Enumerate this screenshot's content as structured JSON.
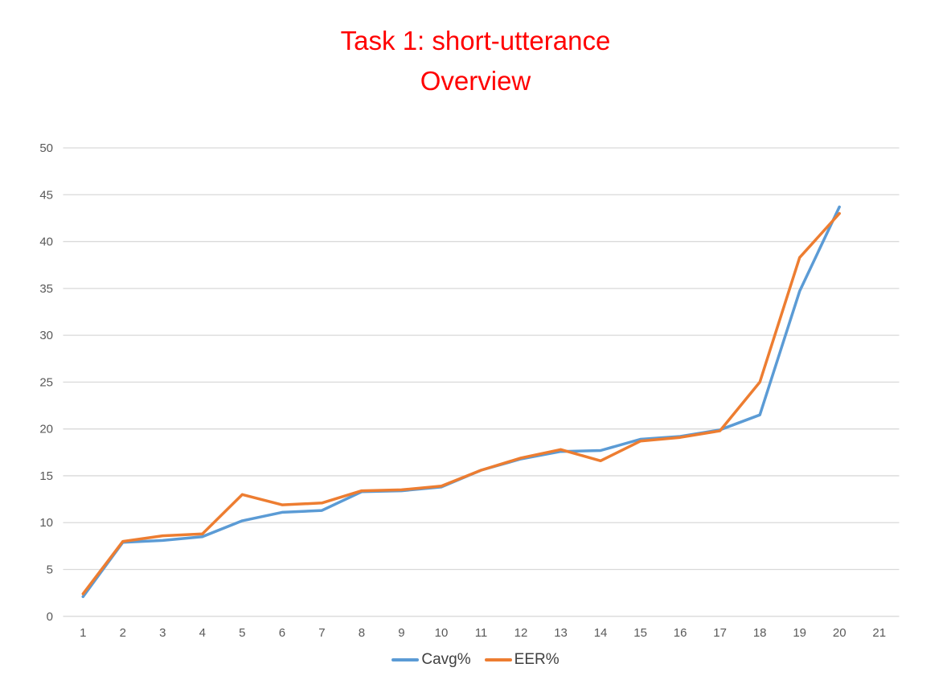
{
  "title": {
    "line1": "Task 1: short-utterance",
    "line2": "Overview",
    "color": "#ff0000"
  },
  "chart_data": {
    "type": "line",
    "x_tick_labels": [
      "1",
      "2",
      "3",
      "4",
      "5",
      "6",
      "7",
      "8",
      "9",
      "10",
      "11",
      "12",
      "13",
      "14",
      "15",
      "16",
      "17",
      "18",
      "19",
      "20",
      "21"
    ],
    "categories": [
      1,
      2,
      3,
      4,
      5,
      6,
      7,
      8,
      9,
      10,
      11,
      12,
      13,
      14,
      15,
      16,
      17,
      18,
      19,
      20
    ],
    "series": [
      {
        "name": "Cavg%",
        "color": "#5B9BD5",
        "values": [
          2.1,
          7.9,
          8.1,
          8.5,
          10.2,
          11.1,
          11.3,
          13.3,
          13.4,
          13.8,
          15.6,
          16.8,
          17.6,
          17.7,
          18.9,
          19.2,
          19.9,
          21.5,
          34.7,
          43.7
        ]
      },
      {
        "name": "EER%",
        "color": "#ED7D31",
        "values": [
          2.4,
          8.0,
          8.6,
          8.8,
          13.0,
          11.9,
          12.1,
          13.4,
          13.5,
          13.9,
          15.6,
          16.9,
          17.8,
          16.6,
          18.7,
          19.1,
          19.8,
          25.0,
          38.3,
          43.0
        ]
      }
    ],
    "ylim": [
      0,
      50
    ],
    "y_ticks": [
      0,
      5,
      10,
      15,
      20,
      25,
      30,
      35,
      40,
      45,
      50
    ],
    "grid": "horizontal",
    "legend_position": "bottom",
    "gridline_color": "#D9D9D9",
    "tick_label_color": "#595959",
    "legend_text_color": "#404040"
  }
}
